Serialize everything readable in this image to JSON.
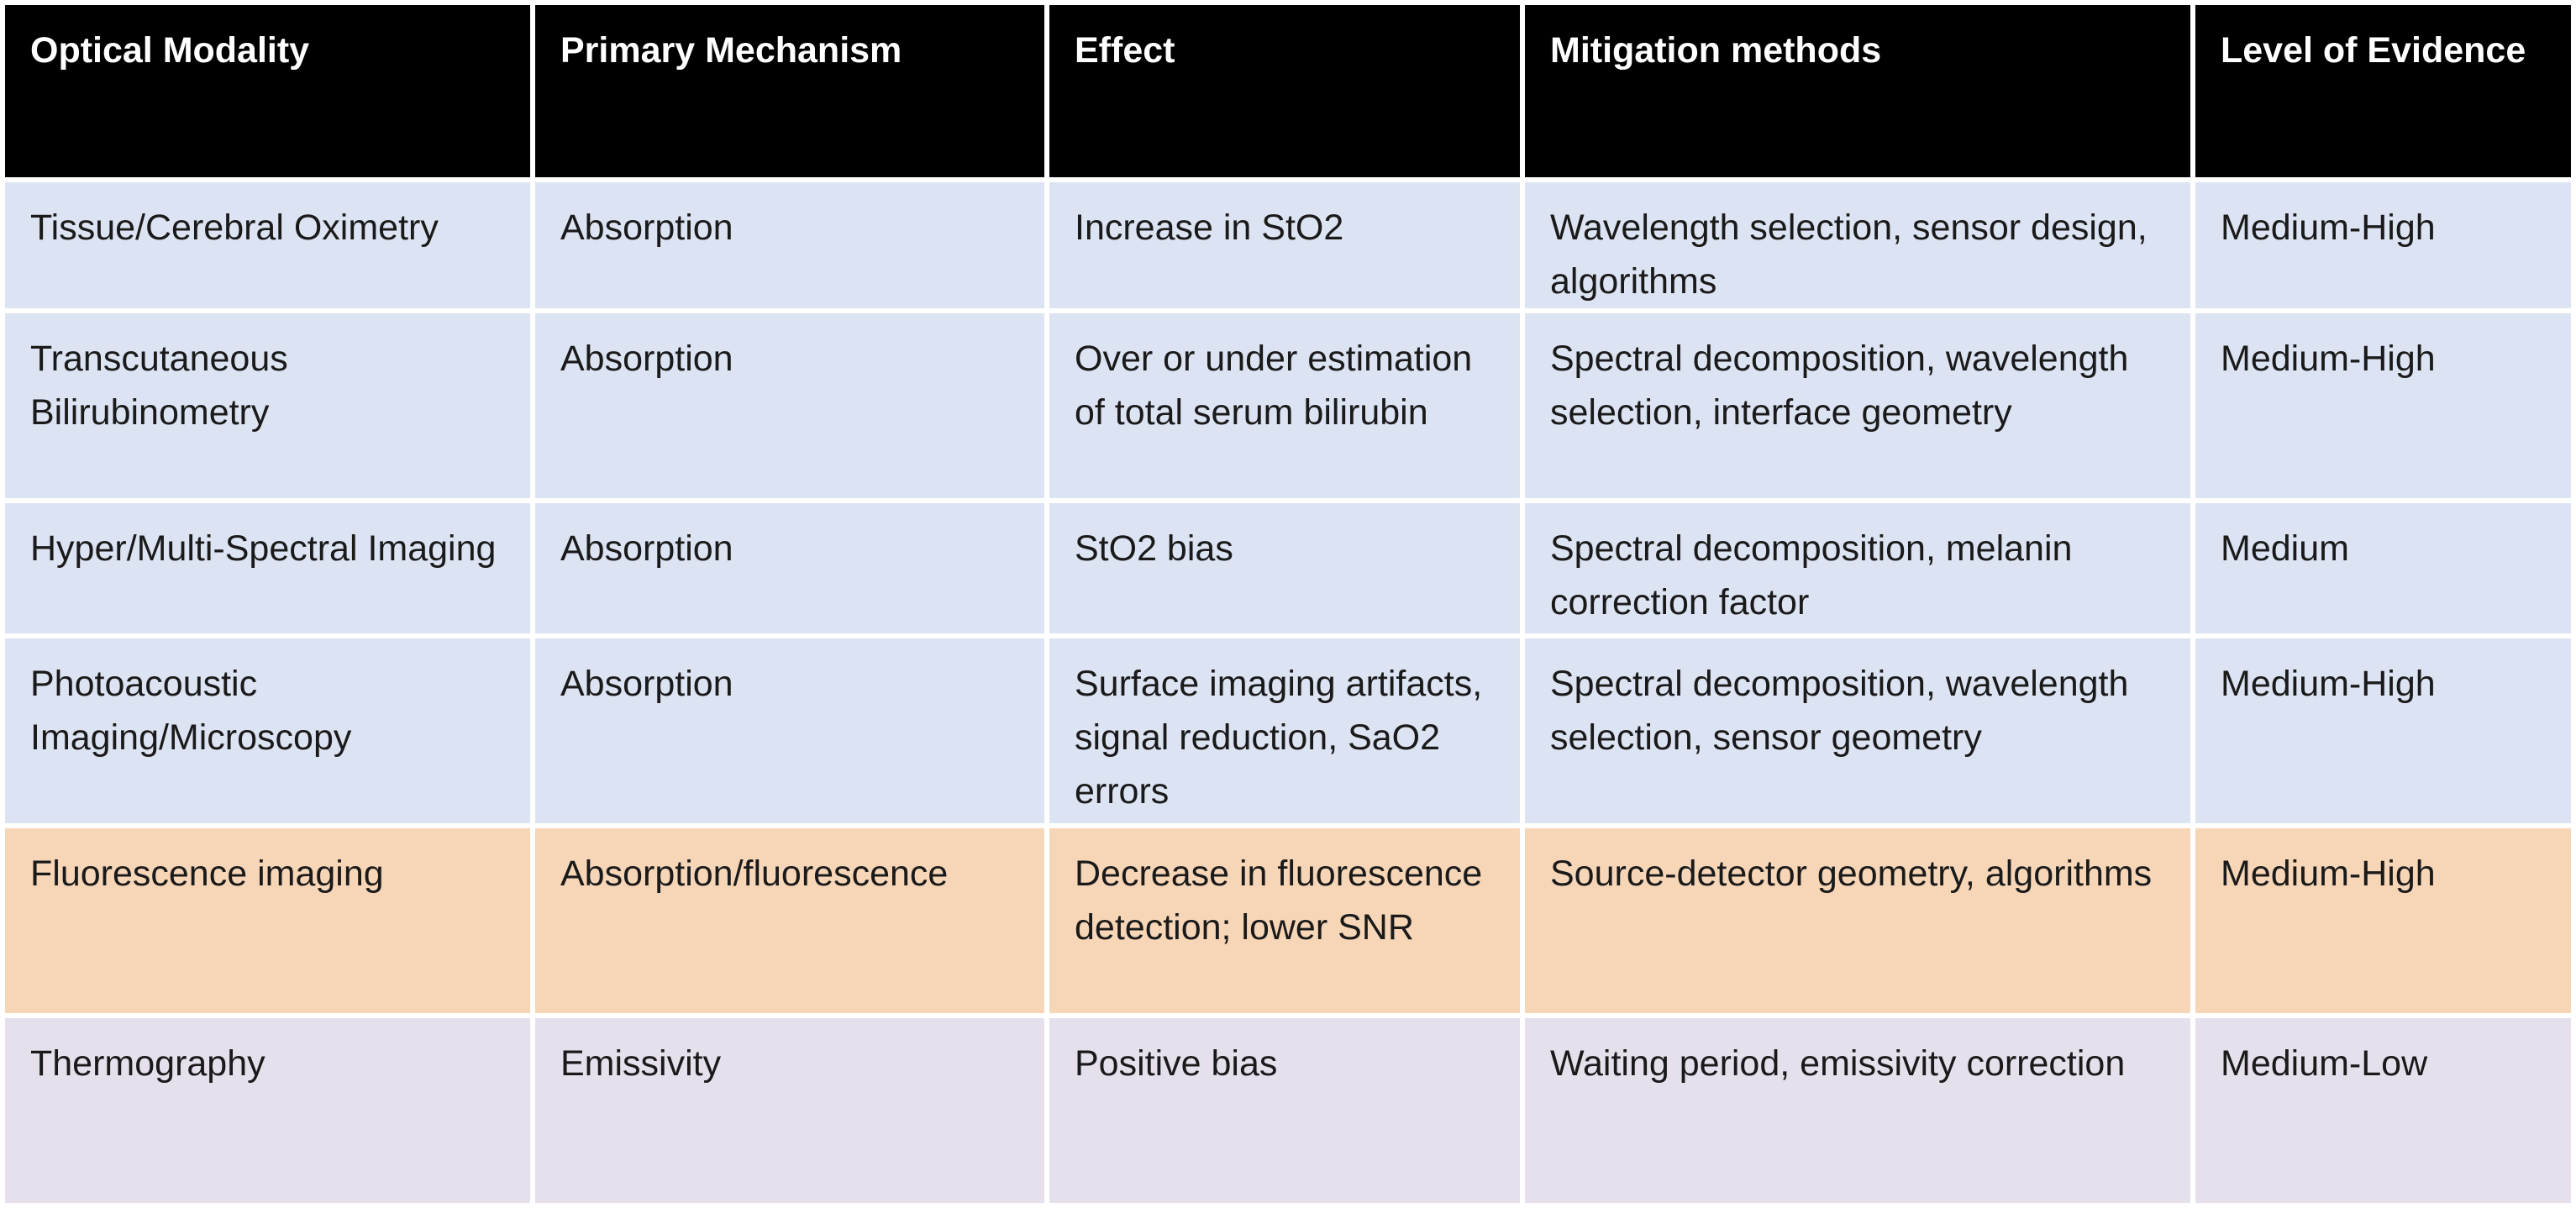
{
  "table": {
    "headers": [
      "Optical Modality",
      "Primary Mechanism",
      "Effect",
      "Mitigation  methods",
      "Level of Evidence"
    ],
    "rows": [
      {
        "modality": "Tissue/Cerebral Oximetry",
        "mechanism": "Absorption",
        "effect": "Increase in StO2",
        "mitigation": "Wavelength selection, sensor design, algorithms",
        "evidence": "Medium-High"
      },
      {
        "modality": "Transcutaneous Bilirubinometry",
        "mechanism": "Absorption",
        "effect": "Over or under estimation of total serum bilirubin",
        "mitigation": "Spectral decomposition, wavelength selection, interface geometry",
        "evidence": "Medium-High"
      },
      {
        "modality": "Hyper/Multi-Spectral Imaging",
        "mechanism": "Absorption",
        "effect": "StO2 bias",
        "mitigation": "Spectral decomposition, melanin correction factor",
        "evidence": "Medium"
      },
      {
        "modality": "Photoacoustic Imaging/Microscopy",
        "mechanism": "Absorption",
        "effect": "Surface imaging artifacts, signal reduction, SaO2 errors",
        "mitigation": "Spectral decomposition, wavelength selection, sensor geometry",
        "evidence": "Medium-High"
      },
      {
        "modality": "Fluorescence imaging",
        "mechanism": "Absorption/fluorescence",
        "effect": "Decrease in fluorescence detection; lower SNR",
        "mitigation": "Source-detector geometry, algorithms",
        "evidence": "Medium-High"
      },
      {
        "modality": "Thermography",
        "mechanism": "Emissivity",
        "effect": "Positive bias",
        "mitigation": "Waiting period, emissivity correction",
        "evidence": "Medium-Low"
      }
    ]
  },
  "colors": {
    "header_bg": "#000000",
    "header_text": "#ffffff",
    "absorption_rows_bg": "#dce3f2",
    "fluorescence_row_bg": "#f7d6b8",
    "emissivity_row_bg": "#e6e0ed"
  }
}
